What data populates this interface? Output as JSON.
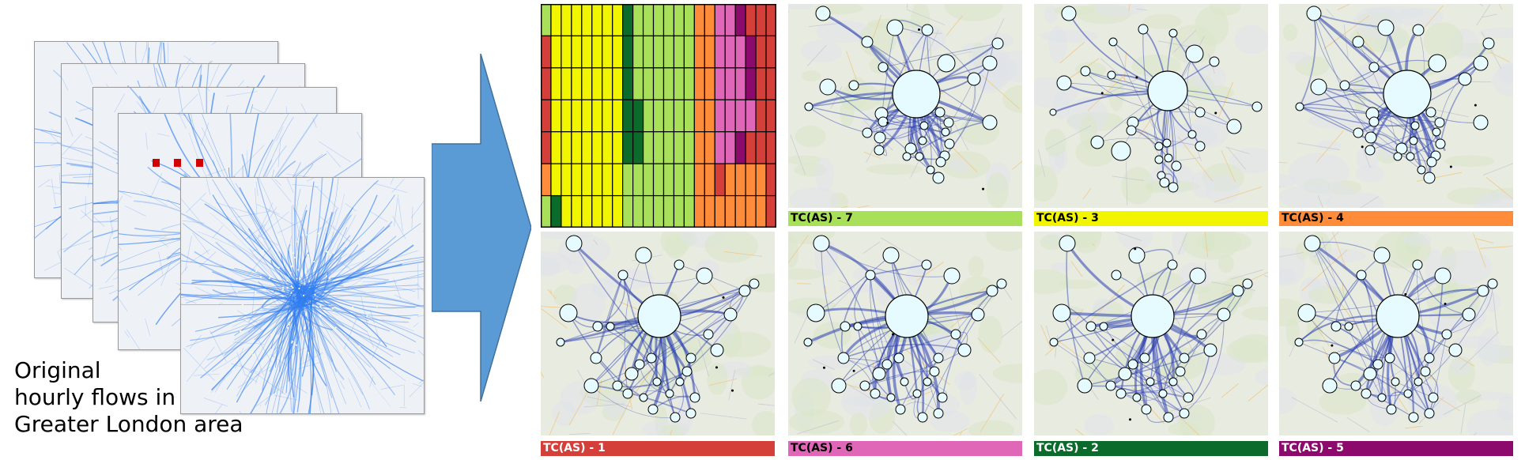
{
  "caption": {
    "line1": "Original",
    "line2": "hourly flows in",
    "line3": "Greater London area"
  },
  "colors": {
    "TC1": "#d43f3a",
    "TC2": "#0a6b2a",
    "TC3": "#f2f500",
    "TC4": "#ff8c3a",
    "TC5": "#8b0a6b",
    "TC6": "#e066b8",
    "TC7": "#a8e05a",
    "arrow": "#5b9bd5",
    "network_edge": "#2b3fb0",
    "node_fill": "#e6fbff",
    "flow_blue": "#2f7df0"
  },
  "heatmap": {
    "rows": [
      [
        "TC7",
        "TC3",
        "TC3",
        "TC3",
        "TC3",
        "TC3",
        "TC3",
        "TC3",
        "TC2",
        "TC7",
        "TC7",
        "TC7",
        "TC7",
        "TC7",
        "TC7",
        "TC4",
        "TC4",
        "TC6",
        "TC6",
        "TC5",
        "TC1",
        "TC1",
        "TC1"
      ],
      [
        "TC1",
        "TC3",
        "TC3",
        "TC3",
        "TC3",
        "TC3",
        "TC3",
        "TC3",
        "TC2",
        "TC7",
        "TC7",
        "TC7",
        "TC7",
        "TC7",
        "TC7",
        "TC4",
        "TC4",
        "TC6",
        "TC6",
        "TC6",
        "TC5",
        "TC1",
        "TC1"
      ],
      [
        "TC1",
        "TC3",
        "TC3",
        "TC3",
        "TC3",
        "TC3",
        "TC3",
        "TC3",
        "TC2",
        "TC7",
        "TC7",
        "TC7",
        "TC7",
        "TC7",
        "TC7",
        "TC4",
        "TC4",
        "TC6",
        "TC6",
        "TC6",
        "TC5",
        "TC1",
        "TC1"
      ],
      [
        "TC1",
        "TC3",
        "TC3",
        "TC3",
        "TC3",
        "TC3",
        "TC3",
        "TC3",
        "TC2",
        "TC2",
        "TC7",
        "TC7",
        "TC7",
        "TC7",
        "TC7",
        "TC4",
        "TC4",
        "TC6",
        "TC6",
        "TC6",
        "TC6",
        "TC1",
        "TC1"
      ],
      [
        "TC1",
        "TC3",
        "TC3",
        "TC3",
        "TC3",
        "TC3",
        "TC3",
        "TC3",
        "TC2",
        "TC2",
        "TC7",
        "TC7",
        "TC7",
        "TC7",
        "TC7",
        "TC4",
        "TC4",
        "TC6",
        "TC6",
        "TC5",
        "TC1",
        "TC1",
        "TC1"
      ],
      [
        "TC4",
        "TC3",
        "TC3",
        "TC3",
        "TC3",
        "TC3",
        "TC3",
        "TC3",
        "TC7",
        "TC7",
        "TC7",
        "TC7",
        "TC7",
        "TC7",
        "TC7",
        "TC4",
        "TC4",
        "TC1",
        "TC4",
        "TC4",
        "TC4",
        "TC4",
        "TC1"
      ],
      [
        "TC7",
        "TC2",
        "TC3",
        "TC3",
        "TC3",
        "TC3",
        "TC3",
        "TC3",
        "TC7",
        "TC7",
        "TC7",
        "TC7",
        "TC7",
        "TC7",
        "TC7",
        "TC4",
        "TC4",
        "TC4",
        "TC4",
        "TC4",
        "TC4",
        "TC4",
        "TC1"
      ]
    ]
  },
  "panels": [
    {
      "label": "TC(AS) - 7",
      "color_key": "TC7",
      "variant": 0
    },
    {
      "label": "TC(AS) - 3",
      "color_key": "TC3",
      "variant": 1
    },
    {
      "label": "TC(AS) - 4",
      "color_key": "TC4",
      "variant": 0
    },
    {
      "label": "TC(AS) - 1",
      "color_key": "TC1",
      "variant": 2
    },
    {
      "label": "TC(AS) - 6",
      "color_key": "TC6",
      "variant": 2
    },
    {
      "label": "TC(AS) - 2",
      "color_key": "TC2",
      "variant": 2
    },
    {
      "label": "TC(AS) - 5",
      "color_key": "TC5",
      "variant": 2
    }
  ]
}
